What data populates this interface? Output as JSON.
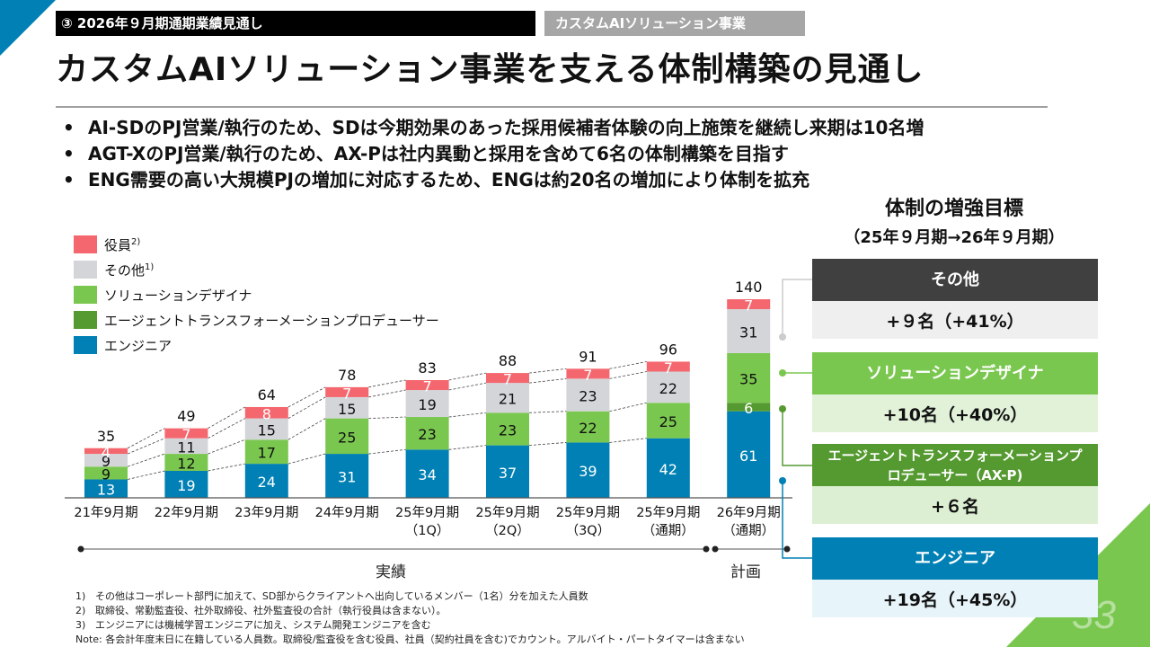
{
  "header": {
    "section": "③ 2026年９月期通期業績見通し",
    "tag": "カスタムAIソリューション事業",
    "title": "カスタムAIソリューション事業を支える体制構築の見通し"
  },
  "bullets": [
    "AI-SDのPJ営業/執行のため、SDは今期効果のあった採用候補者体験の向上施策を継続し来期は10名増",
    "AGT-XのPJ営業/執行のため、AX-Pは社内異動と採用を含めて6名の体制構築を目指す",
    "ENG需要の高い大規模PJの増加に対応するため、ENGは約20名の増加により体制を拡充"
  ],
  "bullet_marker": "•",
  "targets": {
    "title": "体制の増強目標",
    "subtitle": "（25年９月期→26年９月期）",
    "cards": [
      {
        "label": "その他",
        "value": "+９名（+41%）",
        "head_color": "#404040",
        "body_color": "#efefef"
      },
      {
        "label": "ソリューションデザイナ",
        "value": "+10名（+40%）",
        "head_color": "#7ac74f",
        "body_color": "#e2f2d9"
      },
      {
        "label": "エージェントトランスフォーメーションプロデューサー（AX-P)",
        "value": "+６名",
        "head_color": "#559a30",
        "body_color": "#dcefd2"
      },
      {
        "label": "エンジニア",
        "value": "+19名（+45%）",
        "head_color": "#0080b4",
        "body_color": "#e7f4fa"
      }
    ]
  },
  "periods": {
    "actual": "実績",
    "plan": "計画"
  },
  "footnotes": [
    {
      "num": "1)",
      "text": "その他はコーポレート部門に加えて、SD部からクライアントへ出向しているメンバー（1名）分を加えた人員数"
    },
    {
      "num": "2)",
      "text": "取締役、常勤監査役、社外取締役、社外監査役の合計（執行役員は含まない）。"
    },
    {
      "num": "3)",
      "text": "エンジニアには機械学習エンジニアに加え、システム開発エンジニアを含む"
    },
    {
      "num": "",
      "text": "Note: 各会計年度末日に在籍している人員数。取締役/監査役を含む役員、社員（契約社員を含む)でカウント。アルバイト・パートタイマーは含まない"
    }
  ],
  "page_number": "33",
  "chart_data": {
    "type": "bar",
    "stacked": true,
    "title": "",
    "xlabel": "",
    "ylabel": "",
    "ylim": [
      0,
      140
    ],
    "grid": false,
    "legend_position": "top-left",
    "categories": [
      [
        "21年9月期",
        ""
      ],
      [
        "22年9月期",
        ""
      ],
      [
        "23年9月期",
        ""
      ],
      [
        "24年9月期",
        ""
      ],
      [
        "25年9月期",
        "（1Q）"
      ],
      [
        "25年9月期",
        "（2Q）"
      ],
      [
        "25年9月期",
        "（3Q）"
      ],
      [
        "25年9月期",
        "（通期）"
      ],
      [
        "26年9月期",
        "（通期）"
      ]
    ],
    "totals": [
      35,
      49,
      64,
      78,
      83,
      88,
      91,
      96,
      140
    ],
    "series": [
      {
        "name": "エンジニア",
        "color": "#0080b4",
        "label_color": "#ffffff",
        "values": [
          13,
          19,
          24,
          31,
          34,
          37,
          39,
          42,
          61
        ]
      },
      {
        "name": "エージェントトランスフォーメーションプロデューサー",
        "color": "#559a30",
        "label_color": "#ffffff",
        "values": [
          0,
          0,
          0,
          0,
          0,
          0,
          0,
          0,
          6
        ]
      },
      {
        "name": "ソリューションデザイナ",
        "color": "#7ac74f",
        "label_color": "#111111",
        "values": [
          9,
          12,
          17,
          25,
          23,
          23,
          22,
          25,
          35
        ]
      },
      {
        "name": "その他",
        "sup": "1)",
        "color": "#d4d5d9",
        "label_color": "#111111",
        "values": [
          9,
          11,
          15,
          15,
          19,
          21,
          23,
          22,
          31
        ]
      },
      {
        "name": "役員",
        "sup": "2)",
        "color": "#f4676e",
        "label_color": "#ffffff",
        "values": [
          4,
          7,
          8,
          7,
          7,
          7,
          7,
          7,
          7
        ]
      }
    ],
    "legend_order": [
      "役員",
      "その他",
      "ソリューションデザイナ",
      "エージェントトランスフォーメーションプロデューサー",
      "エンジニア"
    ]
  }
}
